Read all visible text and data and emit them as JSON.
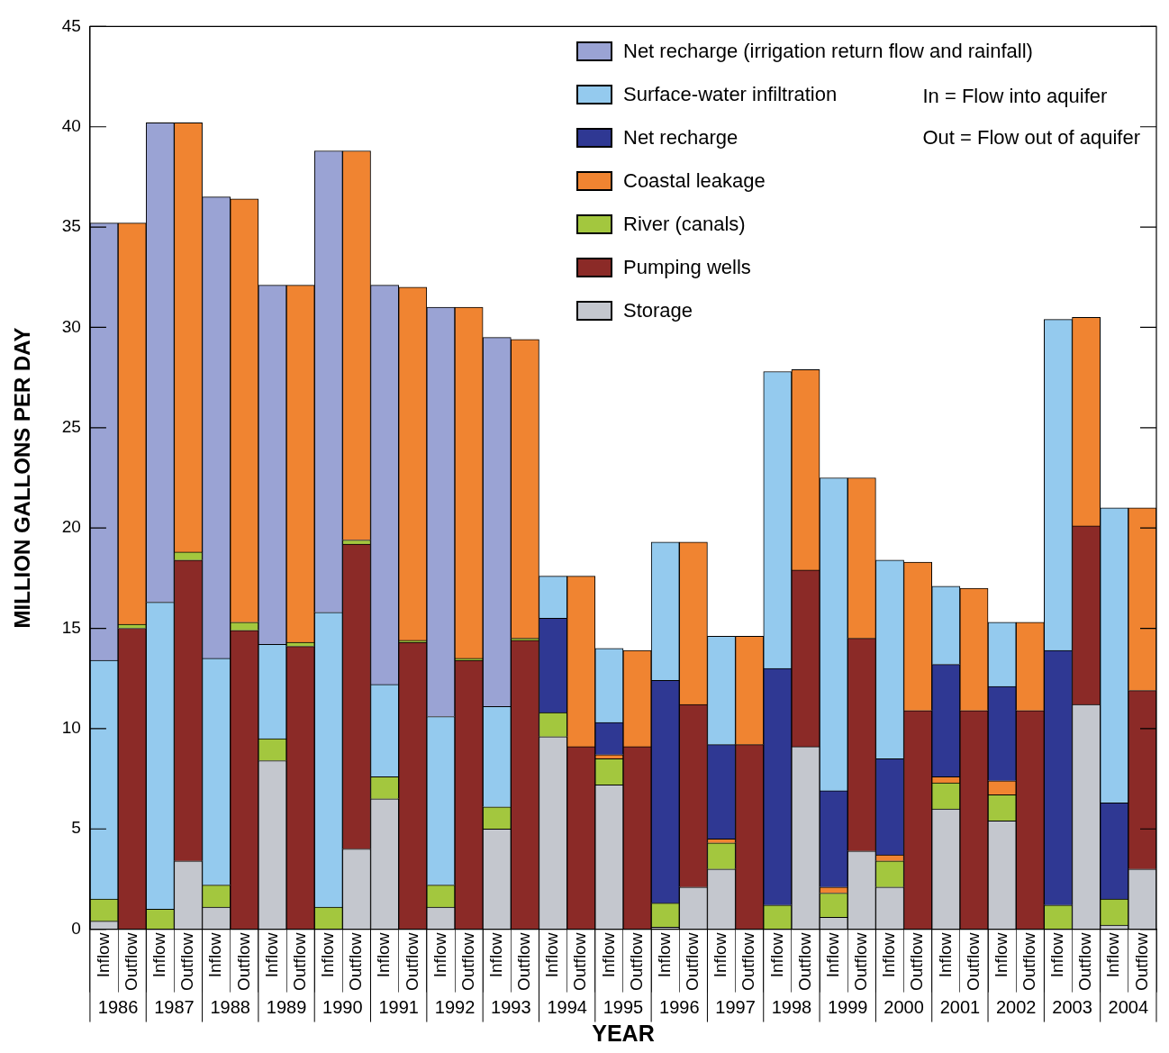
{
  "chart_data": {
    "type": "bar",
    "stacked": true,
    "xlabel": "YEAR",
    "ylabel": "MILLION GALLONS PER DAY",
    "legend": "top right",
    "ylim": [
      0,
      45
    ],
    "yticks": [
      0,
      5,
      10,
      15,
      20,
      25,
      30,
      35,
      40,
      45
    ],
    "categories": [
      "Inflow",
      "Outflow",
      "Inflow",
      "Outflow",
      "Inflow",
      "Outflow",
      "Inflow",
      "Outflow",
      "Inflow",
      "Outflow",
      "Inflow",
      "Outflow",
      "Inflow",
      "Outflow",
      "Inflow",
      "Outflow",
      "Inflow",
      "Outflow",
      "Inflow",
      "Outflow",
      "Inflow",
      "Outflow",
      "Inflow",
      "Outflow",
      "Inflow",
      "Outflow",
      "Inflow",
      "Outflow",
      "Inflow",
      "Outflow",
      "Inflow",
      "Outflow",
      "Inflow",
      "Outflow",
      "Inflow",
      "Outflow",
      "Inflow",
      "Outflow"
    ],
    "annotations": [
      "In = Flow into aquifer",
      "Out = Flow out of aquifer",
      "1986",
      "1987",
      "1988",
      "1989",
      "1990",
      "1991",
      "1992",
      "1993",
      "1994",
      "1995",
      "1996",
      "1997",
      "1998",
      "1999",
      "2000",
      "2001",
      "2002",
      "2003",
      "2004"
    ],
    "series": [
      {
        "name": "Storage",
        "color": "#c4c7ce",
        "values": [
          0.4,
          null,
          null,
          3.4,
          1.1,
          null,
          8.4,
          null,
          null,
          4.0,
          6.5,
          null,
          1.1,
          null,
          5.0,
          null,
          9.6,
          null,
          7.2,
          null,
          0.1,
          2.1,
          3.0,
          null,
          null,
          9.1,
          0.6,
          3.9,
          2.1,
          null,
          6.0,
          null,
          5.4,
          null,
          null,
          11.2,
          0.2,
          3.0
        ]
      },
      {
        "name": "Pumping wells",
        "color": "#8b2a27",
        "values": [
          null,
          15.0,
          null,
          15.0,
          null,
          14.9,
          null,
          14.1,
          null,
          15.2,
          null,
          14.3,
          null,
          13.4,
          null,
          14.4,
          null,
          9.1,
          null,
          9.1,
          null,
          9.1,
          null,
          9.2,
          null,
          8.8,
          null,
          10.6,
          null,
          10.9,
          null,
          10.9,
          null,
          10.9,
          null,
          8.9,
          null,
          8.9
        ]
      },
      {
        "name": "River (canals)",
        "color": "#a3c73e",
        "values": [
          1.1,
          0.2,
          1.0,
          0.4,
          1.1,
          0.4,
          1.1,
          0.2,
          1.1,
          0.2,
          1.1,
          0.1,
          1.1,
          0.1,
          1.1,
          0.1,
          1.2,
          null,
          1.3,
          null,
          1.2,
          null,
          1.3,
          null,
          1.2,
          null,
          1.2,
          null,
          1.3,
          null,
          1.3,
          null,
          1.3,
          null,
          1.2,
          null,
          1.3,
          null
        ]
      },
      {
        "name": "Coastal leakage",
        "color": "#f08431",
        "values": [
          null,
          20.0,
          null,
          21.4,
          null,
          21.1,
          null,
          17.8,
          null,
          19.4,
          null,
          17.6,
          null,
          17.5,
          null,
          14.9,
          null,
          8.5,
          0.2,
          4.8,
          null,
          8.1,
          0.2,
          5.4,
          null,
          10.0,
          0.3,
          8.0,
          0.3,
          7.4,
          0.3,
          6.1,
          0.7,
          4.4,
          null,
          10.4,
          null,
          9.1
        ]
      },
      {
        "name": "Net recharge",
        "color": "#2f3893",
        "values": [
          null,
          null,
          null,
          null,
          null,
          null,
          null,
          null,
          null,
          null,
          null,
          null,
          null,
          null,
          null,
          null,
          4.7,
          null,
          1.6,
          null,
          11.1,
          null,
          4.7,
          null,
          11.8,
          null,
          4.8,
          null,
          4.8,
          null,
          5.6,
          null,
          4.7,
          null,
          12.7,
          null,
          4.8,
          null
        ]
      },
      {
        "name": "Surface-water infiltration",
        "color": "#94caee",
        "values": [
          11.9,
          null,
          15.3,
          null,
          11.3,
          null,
          4.7,
          null,
          14.7,
          null,
          4.6,
          null,
          8.4,
          null,
          5.0,
          null,
          2.1,
          null,
          3.7,
          null,
          6.9,
          null,
          5.4,
          null,
          14.8,
          null,
          15.6,
          null,
          9.9,
          null,
          3.9,
          null,
          3.2,
          null,
          16.5,
          null,
          14.7,
          null
        ]
      },
      {
        "name": "Net recharge (irrigation return flow and rainfall)",
        "color": "#9aa3d4",
        "values": [
          21.8,
          null,
          23.9,
          null,
          23.0,
          null,
          17.9,
          null,
          23.0,
          null,
          19.9,
          null,
          20.4,
          null,
          18.4,
          null,
          null,
          null,
          null,
          null,
          null,
          null,
          null,
          null,
          null,
          null,
          null,
          null,
          null,
          null,
          null,
          null,
          null,
          null,
          null,
          null,
          null,
          null
        ]
      }
    ]
  }
}
